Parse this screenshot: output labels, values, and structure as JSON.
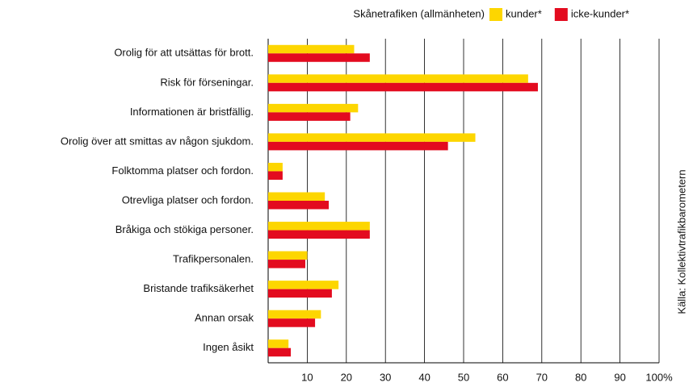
{
  "chart_data": {
    "type": "hbar",
    "legend_title": "Skånetrafiken (allmänheten)",
    "source": "Källa: Kollektivtrafikbarometern",
    "categories": [
      "Orolig för att utsättas för brott.",
      "Risk för förseningar.",
      "Informationen är bristfällig.",
      "Orolig över att smittas av någon sjukdom.",
      "Folktomma platser och fordon.",
      "Otrevliga platser och fordon.",
      "Bråkiga och stökiga personer.",
      "Trafikpersonalen.",
      "Bristande trafiksäkerhet",
      "Annan orsak",
      "Ingen åsikt"
    ],
    "series": [
      {
        "name": "kunder*",
        "color": "#fdd600",
        "values": [
          22,
          66.5,
          23,
          53,
          3.7,
          14.5,
          26,
          10,
          18,
          13.5,
          5.2
        ]
      },
      {
        "name": "icke-kunder*",
        "color": "#e30b1f",
        "values": [
          26,
          69,
          21,
          46,
          3.7,
          15.5,
          26,
          9.5,
          16.3,
          12,
          5.8
        ]
      }
    ],
    "xlim": [
      0,
      100
    ],
    "xticks": [
      10,
      20,
      30,
      40,
      50,
      60,
      70,
      80,
      90,
      {
        "value": 100,
        "label": "100%"
      }
    ],
    "grid": true
  }
}
